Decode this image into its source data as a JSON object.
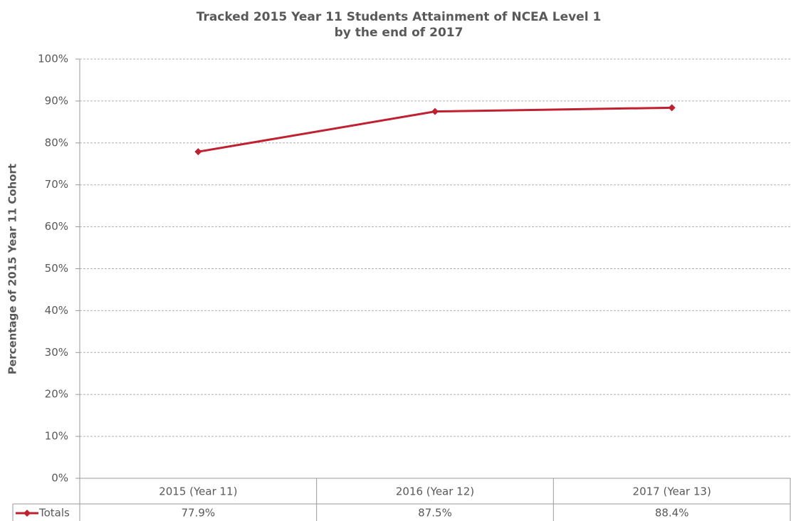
{
  "chart_data": {
    "type": "line",
    "title": [
      "Tracked 2015 Year 11 Students Attainment of NCEA Level 1",
      "by the end of 2017"
    ],
    "y_label": "Percentage of 2015 Year 11 Cohort",
    "categories": [
      "2015 (Year 11)",
      "2016 (Year 12)",
      "2017 (Year 13)"
    ],
    "series": [
      {
        "name": "Totals",
        "color": "#c0202f",
        "values": [
          77.9,
          87.5,
          88.4
        ],
        "value_labels": [
          "77.9%",
          "87.5%",
          "88.4%"
        ]
      }
    ],
    "ylim": [
      0,
      100
    ],
    "yticks": [
      {
        "value": 0,
        "label": "0%"
      },
      {
        "value": 10,
        "label": "10%"
      },
      {
        "value": 20,
        "label": "20%"
      },
      {
        "value": 30,
        "label": "30%"
      },
      {
        "value": 40,
        "label": "40%"
      },
      {
        "value": 50,
        "label": "50%"
      },
      {
        "value": 60,
        "label": "60%"
      },
      {
        "value": 70,
        "label": "70%"
      },
      {
        "value": 80,
        "label": "80%"
      },
      {
        "value": 90,
        "label": "90%"
      },
      {
        "value": 100,
        "label": "100%"
      }
    ],
    "grid": true
  }
}
